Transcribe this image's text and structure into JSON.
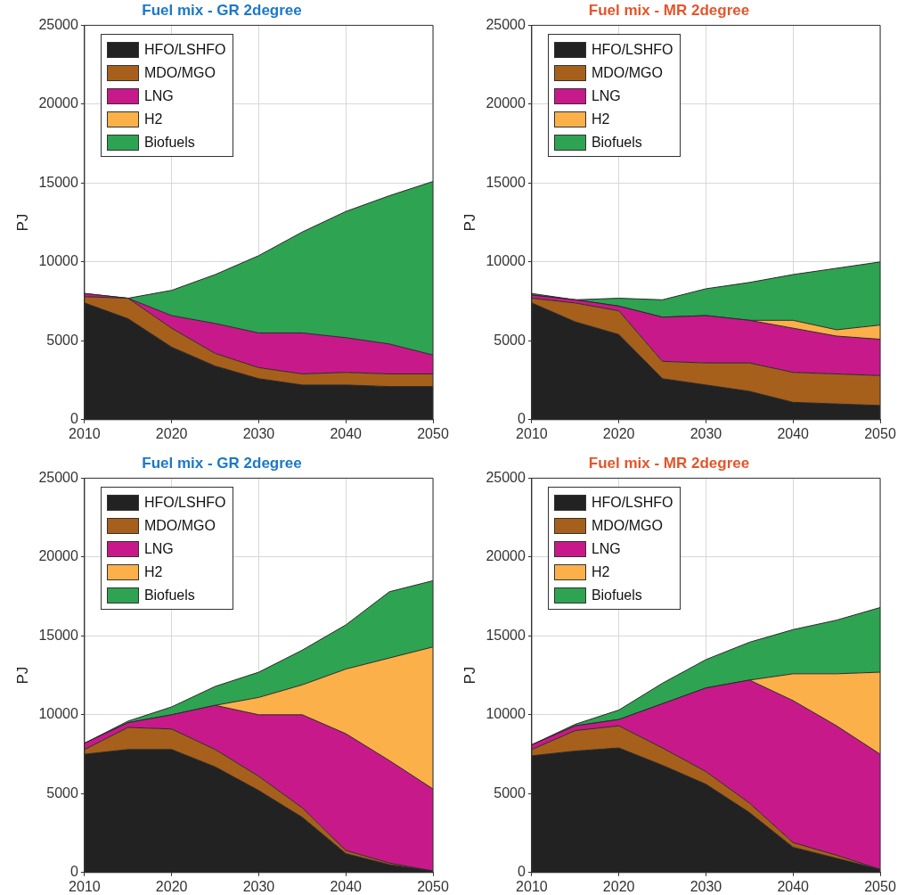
{
  "chart_data": [
    {
      "type": "area",
      "title": "Fuel mix - GR 2degree",
      "ylabel": "PJ",
      "x": [
        2010,
        2015,
        2020,
        2025,
        2030,
        2035,
        2040,
        2045,
        2050
      ],
      "xlim": [
        2010,
        2050
      ],
      "xticks": [
        2010,
        2020,
        2030,
        2040,
        2050
      ],
      "ylim": [
        0,
        25000
      ],
      "yticks": [
        0,
        5000,
        10000,
        15000,
        20000,
        25000
      ],
      "stacked": true,
      "grid": true,
      "legend": "top left",
      "series": [
        {
          "name": "HFO/LSHFO",
          "color": "#222222",
          "values": [
            7400,
            6400,
            4600,
            3400,
            2600,
            2200,
            2200,
            2100,
            2100
          ]
        },
        {
          "name": "MDO/MGO",
          "color": "#a6601c",
          "values": [
            400,
            1300,
            1200,
            800,
            700,
            700,
            800,
            800,
            800
          ]
        },
        {
          "name": "LNG",
          "color": "#c8198a",
          "values": [
            200,
            0,
            800,
            1900,
            2200,
            2600,
            2200,
            1900,
            1200
          ]
        },
        {
          "name": "H2",
          "color": "#fbb04a",
          "values": [
            null,
            null,
            null,
            null,
            null,
            null,
            null,
            null,
            null
          ]
        },
        {
          "name": "Biofuels",
          "color": "#2ea352",
          "values": [
            0,
            0,
            1600,
            3100,
            4900,
            6400,
            8000,
            9400,
            11000
          ]
        }
      ]
    },
    {
      "type": "area",
      "title": "Fuel mix - MR 2degree",
      "ylabel": "PJ",
      "x": [
        2010,
        2015,
        2020,
        2025,
        2030,
        2035,
        2040,
        2045,
        2050
      ],
      "xlim": [
        2010,
        2050
      ],
      "xticks": [
        2010,
        2020,
        2030,
        2040,
        2050
      ],
      "ylim": [
        0,
        25000
      ],
      "yticks": [
        0,
        5000,
        10000,
        15000,
        20000,
        25000
      ],
      "stacked": true,
      "grid": true,
      "legend": "top left",
      "series": [
        {
          "name": "HFO/LSHFO",
          "color": "#222222",
          "values": [
            7400,
            6200,
            5400,
            2600,
            2200,
            1800,
            1100,
            1000,
            900
          ]
        },
        {
          "name": "MDO/MGO",
          "color": "#a6601c",
          "values": [
            300,
            1200,
            1500,
            1100,
            1400,
            1800,
            1900,
            1900,
            1900
          ]
        },
        {
          "name": "LNG",
          "color": "#c8198a",
          "values": [
            200,
            200,
            300,
            2800,
            3000,
            2700,
            2800,
            2400,
            2300
          ]
        },
        {
          "name": "H2",
          "color": "#fbb04a",
          "values": [
            0,
            0,
            0,
            0,
            0,
            0,
            500,
            400,
            900
          ]
        },
        {
          "name": "Biofuels",
          "color": "#2ea352",
          "values": [
            100,
            0,
            500,
            1100,
            1700,
            2400,
            2900,
            3900,
            4000
          ]
        }
      ]
    },
    {
      "type": "area",
      "title": "Fuel mix - GR 2degree",
      "ylabel": "PJ",
      "x": [
        2010,
        2015,
        2020,
        2025,
        2030,
        2035,
        2040,
        2045,
        2050
      ],
      "xlim": [
        2010,
        2050
      ],
      "xticks": [
        2010,
        2020,
        2030,
        2040,
        2050
      ],
      "ylim": [
        0,
        25000
      ],
      "yticks": [
        0,
        5000,
        10000,
        15000,
        20000,
        25000
      ],
      "stacked": true,
      "grid": true,
      "legend": "top left",
      "series": [
        {
          "name": "HFO/LSHFO",
          "color": "#222222",
          "values": [
            7500,
            7800,
            7800,
            6700,
            5200,
            3500,
            1200,
            500,
            100
          ]
        },
        {
          "name": "MDO/MGO",
          "color": "#a6601c",
          "values": [
            300,
            1400,
            1300,
            1100,
            900,
            600,
            200,
            100,
            0
          ]
        },
        {
          "name": "LNG",
          "color": "#c8198a",
          "values": [
            400,
            300,
            900,
            2800,
            3900,
            5900,
            7400,
            6500,
            5200
          ]
        },
        {
          "name": "H2",
          "color": "#fbb04a",
          "values": [
            0,
            0,
            0,
            0,
            1100,
            1900,
            4100,
            6500,
            9000
          ]
        },
        {
          "name": "Biofuels",
          "color": "#2ea352",
          "values": [
            0,
            100,
            500,
            1200,
            1600,
            2200,
            2800,
            4200,
            4200
          ]
        }
      ]
    },
    {
      "type": "area",
      "title": "Fuel mix - MR 2degree",
      "ylabel": "PJ",
      "x": [
        2010,
        2015,
        2020,
        2025,
        2030,
        2035,
        2040,
        2045,
        2050
      ],
      "xlim": [
        2010,
        2050
      ],
      "xticks": [
        2010,
        2020,
        2030,
        2040,
        2050
      ],
      "ylim": [
        0,
        25000
      ],
      "yticks": [
        0,
        5000,
        10000,
        15000,
        20000,
        25000
      ],
      "stacked": true,
      "grid": true,
      "legend": "top left",
      "series": [
        {
          "name": "HFO/LSHFO",
          "color": "#222222",
          "values": [
            7400,
            7700,
            7900,
            6800,
            5600,
            3800,
            1600,
            900,
            200
          ]
        },
        {
          "name": "MDO/MGO",
          "color": "#a6601c",
          "values": [
            400,
            1300,
            1400,
            1100,
            800,
            600,
            300,
            200,
            0
          ]
        },
        {
          "name": "LNG",
          "color": "#c8198a",
          "values": [
            300,
            300,
            400,
            2800,
            5300,
            7800,
            9000,
            8200,
            7300
          ]
        },
        {
          "name": "H2",
          "color": "#fbb04a",
          "values": [
            0,
            0,
            0,
            0,
            0,
            0,
            1700,
            3300,
            5200
          ]
        },
        {
          "name": "Biofuels",
          "color": "#2ea352",
          "values": [
            0,
            100,
            600,
            1300,
            1800,
            2400,
            2800,
            3400,
            4100
          ]
        }
      ]
    }
  ]
}
